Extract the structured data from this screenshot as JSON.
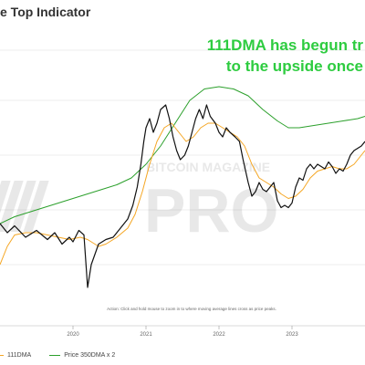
{
  "title": "e Top Indicator",
  "annotation": {
    "line1": "111DMA has begun tr",
    "line2": "to the upside once"
  },
  "footnote": "Action: Click and hold mouse to zoom in to where moving average lines cross as price peaks.",
  "watermark": {
    "line1": "BITCOIN MAGAZINE",
    "line2": "PRO"
  },
  "legend": [
    {
      "label": "111DMA",
      "color": "#f5a623"
    },
    {
      "label": "Price 350DMA x 2",
      "color": "#2ca02c"
    }
  ],
  "colors": {
    "price": "#111111",
    "dma111": "#f5a623",
    "dma350x2": "#2ca02c",
    "annotation": "#2ecc40"
  },
  "chart_data": {
    "type": "line",
    "title": "e Top Indicator",
    "xlim": [
      2019.0,
      2024.0
    ],
    "ylim": [
      0,
      100
    ],
    "y_scale": "log",
    "grid": "horizontal",
    "x_ticks": [
      {
        "value": 2020,
        "label": "2020"
      },
      {
        "value": 2021,
        "label": "2021"
      },
      {
        "value": 2022,
        "label": "2022"
      },
      {
        "value": 2023,
        "label": "2023"
      }
    ],
    "series": [
      {
        "name": "Price",
        "color": "#111111",
        "points": [
          [
            2019.0,
            40
          ],
          [
            2019.1,
            36
          ],
          [
            2019.2,
            39
          ],
          [
            2019.35,
            34
          ],
          [
            2019.5,
            37
          ],
          [
            2019.65,
            33
          ],
          [
            2019.75,
            36
          ],
          [
            2019.85,
            31
          ],
          [
            2019.95,
            34
          ],
          [
            2020.0,
            32
          ],
          [
            2020.08,
            37
          ],
          [
            2020.15,
            35
          ],
          [
            2020.2,
            12
          ],
          [
            2020.25,
            22
          ],
          [
            2020.35,
            31
          ],
          [
            2020.45,
            33
          ],
          [
            2020.55,
            34
          ],
          [
            2020.65,
            38
          ],
          [
            2020.75,
            42
          ],
          [
            2020.82,
            48
          ],
          [
            2020.88,
            56
          ],
          [
            2020.93,
            66
          ],
          [
            2020.97,
            76
          ],
          [
            2021.0,
            82
          ],
          [
            2021.05,
            86
          ],
          [
            2021.1,
            80
          ],
          [
            2021.15,
            84
          ],
          [
            2021.2,
            90
          ],
          [
            2021.27,
            92
          ],
          [
            2021.32,
            86
          ],
          [
            2021.37,
            78
          ],
          [
            2021.42,
            72
          ],
          [
            2021.47,
            68
          ],
          [
            2021.53,
            70
          ],
          [
            2021.58,
            74
          ],
          [
            2021.63,
            80
          ],
          [
            2021.68,
            86
          ],
          [
            2021.73,
            90
          ],
          [
            2021.78,
            86
          ],
          [
            2021.83,
            92
          ],
          [
            2021.88,
            87
          ],
          [
            2021.95,
            84
          ],
          [
            2022.0,
            80
          ],
          [
            2022.05,
            78
          ],
          [
            2022.1,
            82
          ],
          [
            2022.15,
            80
          ],
          [
            2022.22,
            78
          ],
          [
            2022.28,
            76
          ],
          [
            2022.33,
            68
          ],
          [
            2022.4,
            58
          ],
          [
            2022.45,
            52
          ],
          [
            2022.5,
            54
          ],
          [
            2022.55,
            58
          ],
          [
            2022.6,
            55
          ],
          [
            2022.65,
            54
          ],
          [
            2022.7,
            56
          ],
          [
            2022.75,
            58
          ],
          [
            2022.8,
            50
          ],
          [
            2022.85,
            47
          ],
          [
            2022.9,
            48
          ],
          [
            2022.95,
            47
          ],
          [
            2023.0,
            49
          ],
          [
            2023.05,
            56
          ],
          [
            2023.1,
            60
          ],
          [
            2023.15,
            59
          ],
          [
            2023.2,
            64
          ],
          [
            2023.25,
            66
          ],
          [
            2023.3,
            64
          ],
          [
            2023.35,
            66
          ],
          [
            2023.4,
            65
          ],
          [
            2023.45,
            64
          ],
          [
            2023.5,
            67
          ],
          [
            2023.55,
            65
          ],
          [
            2023.6,
            62
          ],
          [
            2023.65,
            64
          ],
          [
            2023.7,
            63
          ],
          [
            2023.75,
            66
          ],
          [
            2023.8,
            70
          ],
          [
            2023.85,
            72
          ],
          [
            2023.9,
            73
          ],
          [
            2023.95,
            74
          ],
          [
            2024.0,
            76
          ]
        ]
      },
      {
        "name": "111DMA",
        "color": "#f5a623",
        "points": [
          [
            2019.0,
            22
          ],
          [
            2019.1,
            30
          ],
          [
            2019.2,
            35
          ],
          [
            2019.35,
            36
          ],
          [
            2019.5,
            36
          ],
          [
            2019.65,
            35
          ],
          [
            2019.8,
            34
          ],
          [
            2019.95,
            33
          ],
          [
            2020.1,
            34
          ],
          [
            2020.2,
            33
          ],
          [
            2020.35,
            30
          ],
          [
            2020.45,
            31
          ],
          [
            2020.6,
            34
          ],
          [
            2020.75,
            38
          ],
          [
            2020.85,
            44
          ],
          [
            2020.95,
            54
          ],
          [
            2021.05,
            66
          ],
          [
            2021.15,
            76
          ],
          [
            2021.25,
            82
          ],
          [
            2021.35,
            84
          ],
          [
            2021.45,
            80
          ],
          [
            2021.55,
            76
          ],
          [
            2021.65,
            78
          ],
          [
            2021.75,
            82
          ],
          [
            2021.85,
            84
          ],
          [
            2021.95,
            84
          ],
          [
            2022.05,
            82
          ],
          [
            2022.15,
            80
          ],
          [
            2022.25,
            78
          ],
          [
            2022.35,
            74
          ],
          [
            2022.45,
            66
          ],
          [
            2022.55,
            60
          ],
          [
            2022.65,
            58
          ],
          [
            2022.75,
            56
          ],
          [
            2022.85,
            53
          ],
          [
            2022.95,
            51
          ],
          [
            2023.05,
            52
          ],
          [
            2023.15,
            55
          ],
          [
            2023.25,
            60
          ],
          [
            2023.35,
            63
          ],
          [
            2023.45,
            64
          ],
          [
            2023.55,
            65
          ],
          [
            2023.65,
            64
          ],
          [
            2023.75,
            64
          ],
          [
            2023.85,
            66
          ],
          [
            2023.95,
            70
          ],
          [
            2024.0,
            72
          ]
        ]
      },
      {
        "name": "Price 350DMA x 2",
        "color": "#2ca02c",
        "points": [
          [
            2019.0,
            40
          ],
          [
            2019.2,
            43
          ],
          [
            2019.4,
            45
          ],
          [
            2019.6,
            47
          ],
          [
            2019.8,
            49
          ],
          [
            2020.0,
            51
          ],
          [
            2020.2,
            53
          ],
          [
            2020.4,
            55
          ],
          [
            2020.6,
            57
          ],
          [
            2020.8,
            60
          ],
          [
            2021.0,
            66
          ],
          [
            2021.2,
            74
          ],
          [
            2021.4,
            84
          ],
          [
            2021.6,
            94
          ],
          [
            2021.8,
            99
          ],
          [
            2022.0,
            100
          ],
          [
            2022.2,
            99
          ],
          [
            2022.4,
            96
          ],
          [
            2022.6,
            90
          ],
          [
            2022.8,
            85
          ],
          [
            2022.95,
            82
          ],
          [
            2023.1,
            82
          ],
          [
            2023.3,
            83
          ],
          [
            2023.5,
            84
          ],
          [
            2023.7,
            85
          ],
          [
            2023.9,
            86
          ],
          [
            2024.0,
            87
          ]
        ]
      }
    ]
  }
}
